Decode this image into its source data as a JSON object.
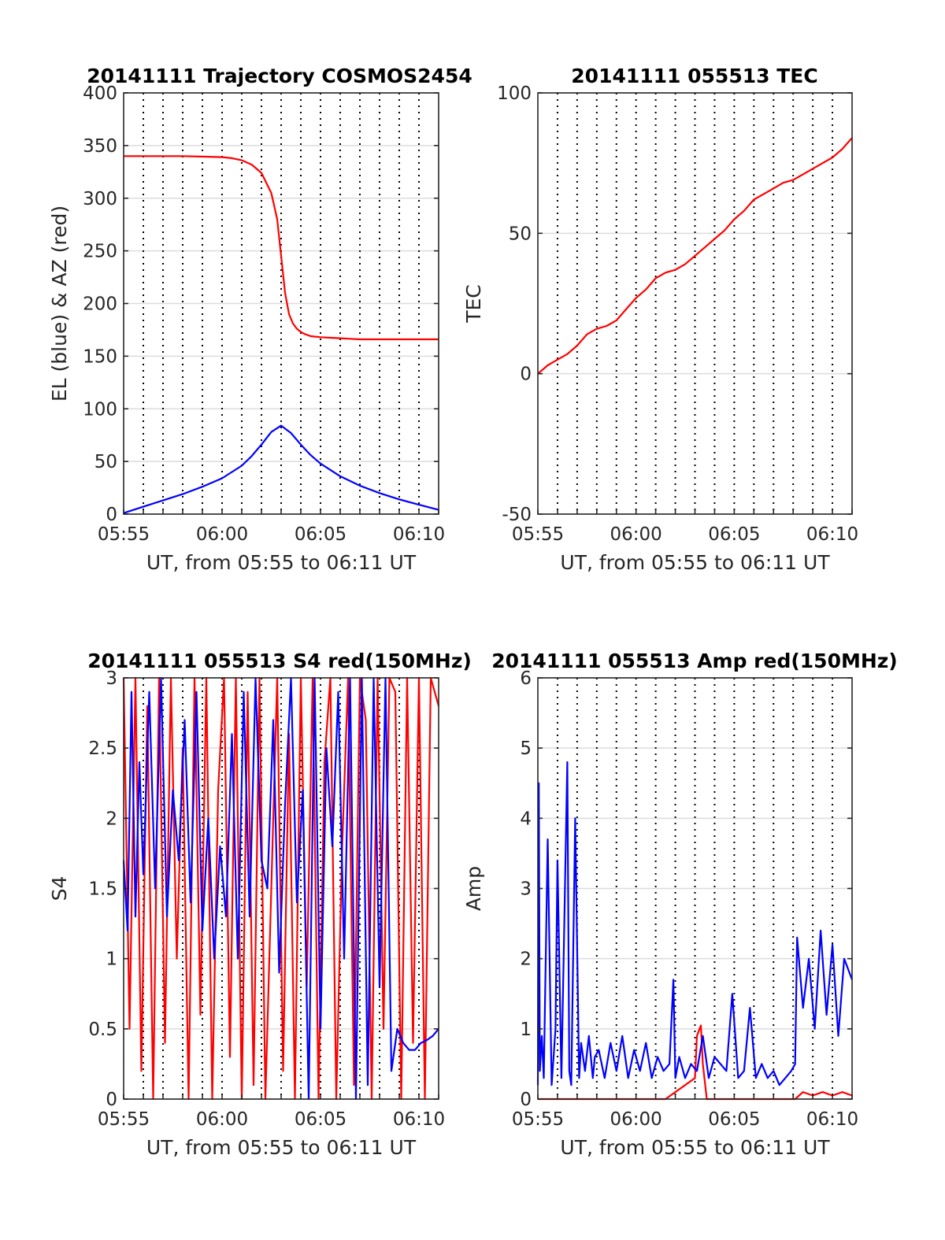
{
  "colors": {
    "el": "#0000ff",
    "az": "#ff0000",
    "axis": "#262626",
    "grid": "#dcdcdc"
  },
  "chart_data": [
    {
      "type": "line",
      "title": "20141111 Trajectory COSMOS2454",
      "xlabel": "UT, from 05:55 to 06:11 UT",
      "ylabel": "EL (blue) & AZ (red)",
      "xlim": [
        0,
        16
      ],
      "ylim": [
        0,
        400
      ],
      "yticks": [
        0,
        50,
        100,
        150,
        200,
        250,
        300,
        350,
        400
      ],
      "xticks": [
        {
          "v": 0,
          "label": "05:55"
        },
        {
          "v": 5,
          "label": "06:00"
        },
        {
          "v": 10,
          "label": "06:05"
        },
        {
          "v": 15,
          "label": "06:10"
        }
      ],
      "series": [
        {
          "color": "#ff0000",
          "x": [
            0,
            1,
            2,
            3,
            4,
            5,
            5.5,
            6,
            6.5,
            7,
            7.5,
            7.8,
            8.0,
            8.2,
            8.4,
            8.6,
            8.8,
            9.0,
            9.2,
            9.5,
            10,
            10.5,
            11,
            11.5,
            12,
            13,
            14,
            15,
            16
          ],
          "y": [
            340,
            340,
            340,
            340,
            339.5,
            339,
            338,
            336,
            332,
            324,
            305,
            280,
            245,
            210,
            190,
            181,
            176,
            173,
            171,
            169,
            168,
            167.5,
            167,
            166.5,
            166,
            166,
            166,
            166,
            166
          ]
        },
        {
          "color": "#0000ff",
          "x": [
            0,
            1,
            2,
            3,
            4,
            5,
            6,
            6.5,
            7,
            7.5,
            8.0,
            8.5,
            9,
            9.5,
            10,
            11,
            12,
            13,
            14,
            15,
            16
          ],
          "y": [
            1,
            7,
            13,
            19,
            26,
            34,
            46,
            55,
            66,
            78,
            84,
            77,
            66,
            56,
            48,
            36,
            27,
            20,
            14,
            9,
            4
          ]
        }
      ]
    },
    {
      "type": "line",
      "title": "20141111 055513 TEC",
      "xlabel": "UT, from 05:55 to 06:11 UT",
      "ylabel": "TEC",
      "xlim": [
        0,
        16
      ],
      "ylim": [
        -50,
        100
      ],
      "yticks": [
        -50,
        0,
        50,
        100
      ],
      "xticks": [
        {
          "v": 0,
          "label": "05:55"
        },
        {
          "v": 5,
          "label": "06:00"
        },
        {
          "v": 10,
          "label": "06:05"
        },
        {
          "v": 15,
          "label": "06:10"
        }
      ],
      "series": [
        {
          "color": "#ff0000",
          "x": [
            0,
            0.5,
            1,
            1.5,
            2,
            2.5,
            3,
            3.5,
            4,
            4.5,
            5,
            5.5,
            6,
            6.5,
            7,
            7.5,
            8,
            8.5,
            9,
            9.5,
            10,
            10.5,
            11,
            11.5,
            12,
            12.5,
            13,
            13.5,
            14,
            14.5,
            15,
            15.5,
            16
          ],
          "y": [
            0,
            3,
            5,
            7,
            10,
            14,
            16,
            17,
            19,
            23,
            27,
            30,
            34,
            36,
            37,
            39,
            42,
            45,
            48,
            51,
            55,
            58,
            62,
            64,
            66,
            68,
            69,
            71,
            73,
            75,
            77,
            80,
            84
          ]
        }
      ]
    },
    {
      "type": "line",
      "title": "20141111 055513 S4 red(150MHz)",
      "xlabel": "UT, from 05:55 to 06:11 UT",
      "ylabel": "S4",
      "xlim": [
        0,
        16
      ],
      "ylim": [
        0,
        3
      ],
      "yticks": [
        0,
        0.5,
        1,
        1.5,
        2,
        2.5,
        3
      ],
      "xticks": [
        {
          "v": 0,
          "label": "05:55"
        },
        {
          "v": 5,
          "label": "06:00"
        },
        {
          "v": 10,
          "label": "06:05"
        },
        {
          "v": 15,
          "label": "06:10"
        }
      ],
      "series": [
        {
          "color": "#ff0000",
          "x": [
            0,
            0.3,
            0.6,
            0.9,
            1.2,
            1.5,
            1.8,
            2.1,
            2.4,
            2.7,
            3.0,
            3.3,
            3.6,
            3.9,
            4.2,
            4.5,
            4.8,
            5.1,
            5.4,
            5.7,
            6.0,
            6.3,
            6.6,
            6.9,
            7.2,
            7.5,
            7.8,
            8.1,
            8.4,
            8.7,
            9.0,
            9.3,
            9.6,
            9.9,
            10.2,
            10.5,
            10.8,
            11.1,
            11.4,
            11.7,
            12.0,
            12.3,
            12.6,
            12.9,
            13.2,
            13.5,
            13.8,
            14.1,
            14.4,
            14.7,
            15.0,
            15.3,
            15.6,
            16
          ],
          "y": [
            3,
            0.5,
            3,
            0.2,
            2.8,
            0,
            3,
            0.4,
            3,
            1.0,
            2.5,
            0,
            3,
            0.6,
            3,
            0,
            2.2,
            3,
            0.3,
            3,
            0,
            2.9,
            0.1,
            3,
            0,
            1.5,
            3,
            0.2,
            2.6,
            0,
            3,
            0.8,
            3,
            0,
            2.4,
            3,
            0,
            1.8,
            3,
            0.1,
            3,
            2.7,
            0,
            3,
            0.5,
            3,
            2.9,
            0,
            3,
            0.4,
            3,
            0,
            3,
            2.8
          ]
        },
        {
          "color": "#0000ff",
          "x": [
            0,
            0.2,
            0.4,
            0.6,
            0.8,
            1.0,
            1.3,
            1.6,
            1.9,
            2.2,
            2.5,
            2.8,
            3.1,
            3.4,
            3.7,
            4.0,
            4.3,
            4.6,
            4.9,
            5.2,
            5.5,
            5.8,
            6.1,
            6.4,
            6.7,
            7.0,
            7.3,
            7.6,
            7.9,
            8.2,
            8.5,
            8.8,
            9.1,
            9.4,
            9.7,
            10.0,
            10.3,
            10.6,
            10.9,
            11.2,
            11.5,
            11.8,
            12.1,
            12.4,
            12.7,
            13.0,
            13.3,
            13.6,
            13.9,
            14.2,
            14.5,
            14.8,
            15.1,
            15.4,
            15.7,
            16
          ],
          "y": [
            1.7,
            1.2,
            2.9,
            1.3,
            2.4,
            1.6,
            2.9,
            1.5,
            3,
            1.3,
            2.2,
            1.7,
            2.7,
            1.4,
            2.9,
            1.2,
            2.0,
            1.0,
            1.8,
            1.3,
            2.6,
            1.0,
            2.9,
            1.3,
            3,
            1.7,
            1.5,
            2.7,
            0.9,
            2.1,
            3,
            1.4,
            2.2,
            0,
            3,
            0.5,
            2.5,
            1.8,
            2.9,
            1.0,
            3,
            0,
            3,
            0.1,
            3,
            0.8,
            3,
            0.2,
            0.5,
            0.4,
            0.35,
            0.35,
            0.4,
            0.42,
            0.45,
            0.5
          ]
        }
      ]
    },
    {
      "type": "line",
      "title": "20141111 055513 Amp red(150MHz)",
      "xlabel": "UT, from 05:55 to 06:11 UT",
      "ylabel": "Amp",
      "xlim": [
        0,
        16
      ],
      "ylim": [
        0,
        6
      ],
      "yticks": [
        0,
        1,
        2,
        3,
        4,
        5,
        6
      ],
      "xticks": [
        {
          "v": 0,
          "label": "05:55"
        },
        {
          "v": 5,
          "label": "06:00"
        },
        {
          "v": 10,
          "label": "06:05"
        },
        {
          "v": 15,
          "label": "06:10"
        }
      ],
      "series": [
        {
          "color": "#ff0000",
          "x": [
            0,
            6.5,
            8.0,
            8.1,
            8.3,
            8.4,
            8.6,
            13.1,
            13.3,
            13.5,
            14,
            14.5,
            15,
            15.5,
            16
          ],
          "y": [
            0,
            0,
            0.3,
            0.9,
            1.05,
            0.5,
            0,
            0,
            0.05,
            0.1,
            0.05,
            0.1,
            0.05,
            0.1,
            0.05
          ]
        },
        {
          "color": "#0000ff",
          "x": [
            0,
            0.05,
            0.1,
            0.2,
            0.3,
            0.5,
            0.7,
            0.9,
            1.0,
            1.2,
            1.5,
            1.6,
            1.7,
            1.9,
            2.1,
            2.2,
            2.4,
            2.6,
            2.8,
            2.9,
            3.1,
            3.4,
            3.7,
            4.0,
            4.3,
            4.6,
            4.9,
            5.2,
            5.5,
            5.8,
            6.1,
            6.4,
            6.7,
            6.9,
            7.0,
            7.2,
            7.5,
            7.8,
            8.1,
            8.4,
            8.7,
            9.0,
            9.3,
            9.6,
            9.9,
            10.2,
            10.5,
            10.8,
            11.1,
            11.4,
            11.7,
            12.0,
            12.3,
            12.6,
            12.9,
            13.1,
            13.2,
            13.5,
            13.8,
            14.1,
            14.4,
            14.7,
            15.0,
            15.3,
            15.6,
            16
          ],
          "y": [
            0.2,
            4.5,
            0.4,
            0.9,
            0.3,
            3.7,
            0.2,
            1.0,
            3.4,
            0.3,
            4.8,
            0.4,
            0.2,
            4.0,
            0.3,
            0.8,
            0.4,
            0.9,
            0.3,
            0.6,
            0.7,
            0.3,
            0.8,
            0.4,
            0.9,
            0.3,
            0.7,
            0.4,
            0.8,
            0.3,
            0.6,
            0.4,
            0.5,
            1.7,
            0.3,
            0.6,
            0.3,
            0.5,
            0.4,
            0.9,
            0.3,
            0.6,
            0.5,
            0.4,
            1.5,
            0.3,
            0.4,
            1.3,
            0.3,
            0.5,
            0.3,
            0.4,
            0.2,
            0.3,
            0.4,
            0.5,
            2.3,
            1.3,
            2.0,
            1.0,
            2.4,
            1.2,
            2.2,
            0.9,
            2.0,
            1.7
          ]
        }
      ]
    }
  ]
}
